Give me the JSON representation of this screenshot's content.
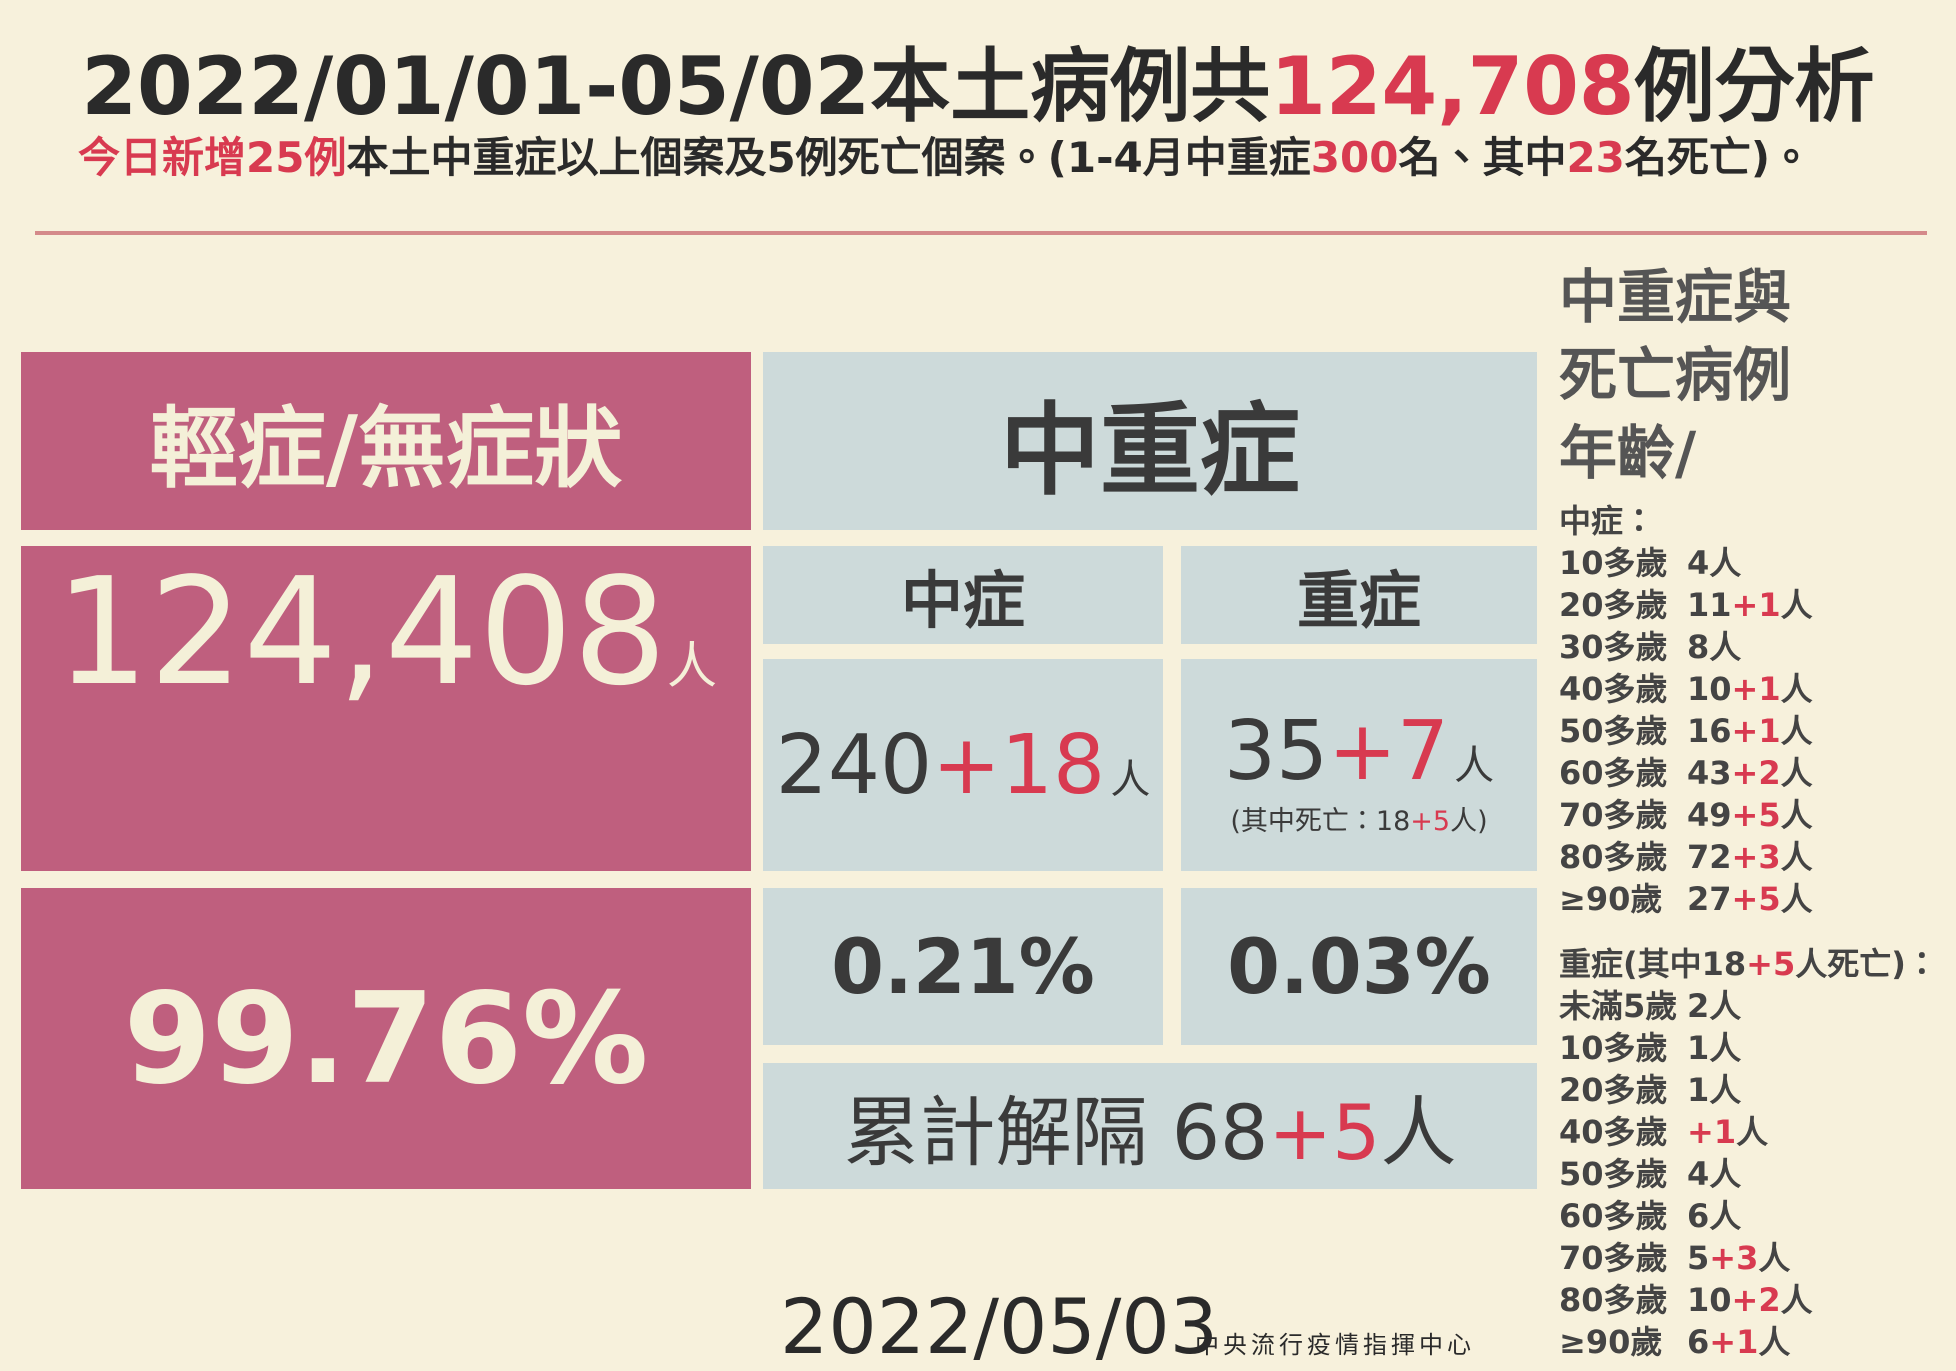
{
  "header": {
    "title": [
      "2022/01/01-05/02本土病例共",
      "124,708",
      "例分析"
    ],
    "subtitle": [
      "今日新增25例",
      "本土中重症以上個案及5例死亡個案。(1-4月中重症",
      "300",
      "名、其中",
      "23",
      "名死亡)。"
    ]
  },
  "mild": {
    "label": "輕症/無症狀",
    "count": "124,408",
    "unit": "人",
    "percent": "99.76%"
  },
  "severe": {
    "label": "中重症",
    "moderate": {
      "label": "中症",
      "count": "240",
      "added": "+18",
      "unit": "人",
      "percent": "0.21%"
    },
    "critical": {
      "label": "重症",
      "count": "35",
      "added": "+7",
      "unit": "人",
      "deaths": [
        "(其中死亡：18",
        "+5",
        "人)"
      ],
      "percent": "0.03%"
    },
    "released": [
      "累計解隔 68",
      "+5",
      "人"
    ]
  },
  "age": {
    "title": [
      "中重症與",
      "死亡病例",
      "年齡/"
    ],
    "moderate": {
      "heading": "中症：",
      "rows": [
        {
          "age": "10多歲",
          "count": "4",
          "unit": "人"
        },
        {
          "age": "20多歲",
          "count": "11",
          "added": "+1",
          "unit": "人"
        },
        {
          "age": "30多歲",
          "count": "8",
          "unit": "人"
        },
        {
          "age": "40多歲",
          "count": "10",
          "added": "+1",
          "unit": "人"
        },
        {
          "age": "50多歲",
          "count": "16",
          "added": "+1",
          "unit": "人"
        },
        {
          "age": "60多歲",
          "count": "43",
          "added": "+2",
          "unit": "人"
        },
        {
          "age": "70多歲",
          "count": "49",
          "added": "+5",
          "unit": "人"
        },
        {
          "age": "80多歲",
          "count": "72",
          "added": "+3",
          "unit": "人"
        },
        {
          "age": "≥90歲",
          "count": "27",
          "added": "+5",
          "unit": "人"
        }
      ]
    },
    "critical": {
      "heading": [
        "重症(其中18",
        "+5",
        "人死亡)："
      ],
      "rows": [
        {
          "age": "未滿5歲",
          "count": "2",
          "unit": "人"
        },
        {
          "age": "10多歲",
          "count": "1",
          "unit": "人"
        },
        {
          "age": "20多歲",
          "count": "1",
          "unit": "人"
        },
        {
          "age": "40多歲",
          "added": "+1",
          "unit": "人"
        },
        {
          "age": "50多歲",
          "count": "4",
          "unit": "人"
        },
        {
          "age": "60多歲",
          "count": "6",
          "unit": "人"
        },
        {
          "age": "70多歲",
          "count": "5",
          "added": "+3",
          "unit": "人"
        },
        {
          "age": "80多歲",
          "count": "10",
          "added": "+2",
          "unit": "人"
        },
        {
          "age": "≥90歲",
          "count": "6",
          "added": "+1",
          "unit": "人"
        }
      ]
    }
  },
  "footer": {
    "date": "2022/05/03",
    "org": "中央流行疫情指揮中心"
  }
}
